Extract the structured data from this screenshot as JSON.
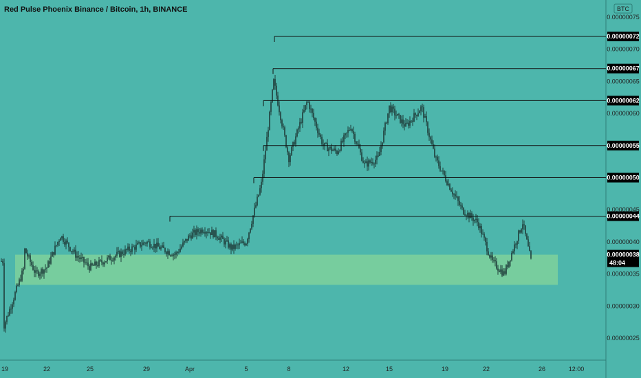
{
  "title": "Red Pulse Phoenix Binance / Bitcoin, 1h, BINANCE",
  "currency_badge": "BTC",
  "countdown": "48:04",
  "colors": {
    "background": "#4db6ac",
    "candle": "#1f3d3a",
    "zone": "#7fd19b",
    "line": "#111111",
    "tag_bg": "#000000",
    "tag_text": "#ffffff"
  },
  "chart_data": {
    "type": "candlestick",
    "symbol": "Red Pulse Phoenix Binance / Bitcoin",
    "interval": "1h",
    "exchange": "BINANCE",
    "x_ticks": [
      "19",
      "22",
      "25",
      "29",
      "Apr",
      "5",
      "8",
      "12",
      "15",
      "19",
      "22",
      "26",
      "12:00"
    ],
    "y_range": [
      2.2e-07,
      7.71e-07
    ],
    "y_ticks": [
      "0.00000025",
      "0.00000030",
      "0.00000035",
      "0.00000040",
      "0.00000045",
      "0.00000050",
      "0.00000055",
      "0.00000060",
      "0.00000065",
      "0.00000070",
      "0.00000075"
    ],
    "horizontal_levels": [
      "0.00000072",
      "0.00000067",
      "0.00000062",
      "0.00000055",
      "0.00000050",
      "0.00000044"
    ],
    "current_price": "0.00000038",
    "support_zone": [
      3.33e-07,
      3.8e-07
    ],
    "close_path": [
      {
        "date": "Mar 19",
        "close": 2.7e-07
      },
      {
        "date": "Mar 20",
        "close": 3.6e-07
      },
      {
        "date": "Mar 20",
        "close": 3.9e-07
      },
      {
        "date": "Mar 21",
        "close": 3.5e-07
      },
      {
        "date": "Mar 22",
        "close": 3.6e-07
      },
      {
        "date": "Mar 23",
        "close": 4.1e-07
      },
      {
        "date": "Mar 24",
        "close": 3.8e-07
      },
      {
        "date": "Mar 25",
        "close": 3.6e-07
      },
      {
        "date": "Mar 26",
        "close": 3.7e-07
      },
      {
        "date": "Mar 28",
        "close": 3.9e-07
      },
      {
        "date": "Mar 29",
        "close": 4e-07
      },
      {
        "date": "Mar 30",
        "close": 3.9e-07
      },
      {
        "date": "Mar 31",
        "close": 3.8e-07
      },
      {
        "date": "Apr 1",
        "close": 4.1e-07
      },
      {
        "date": "Apr 2",
        "close": 4.2e-07
      },
      {
        "date": "Apr 3",
        "close": 4.1e-07
      },
      {
        "date": "Apr 4",
        "close": 3.9e-07
      },
      {
        "date": "Apr 5",
        "close": 4e-07
      },
      {
        "date": "Apr 6",
        "close": 4.9e-07
      },
      {
        "date": "Apr 7",
        "close": 6.5e-07
      },
      {
        "date": "Apr 8",
        "close": 5.3e-07
      },
      {
        "date": "Apr 9",
        "close": 6.2e-07
      },
      {
        "date": "Apr 10",
        "close": 5.5e-07
      },
      {
        "date": "Apr 11",
        "close": 5.4e-07
      },
      {
        "date": "Apr 12",
        "close": 5.8e-07
      },
      {
        "date": "Apr 13",
        "close": 5.2e-07
      },
      {
        "date": "Apr 14",
        "close": 5.3e-07
      },
      {
        "date": "Apr 15",
        "close": 6.1e-07
      },
      {
        "date": "Apr 16",
        "close": 5.8e-07
      },
      {
        "date": "Apr 17",
        "close": 6.1e-07
      },
      {
        "date": "Apr 18",
        "close": 5.3e-07
      },
      {
        "date": "Apr 19",
        "close": 4.9e-07
      },
      {
        "date": "Apr 20",
        "close": 4.5e-07
      },
      {
        "date": "Apr 21",
        "close": 4.3e-07
      },
      {
        "date": "Apr 22",
        "close": 3.7e-07
      },
      {
        "date": "Apr 23",
        "close": 3.5e-07
      },
      {
        "date": "Apr 24",
        "close": 4.3e-07
      },
      {
        "date": "Apr 25",
        "close": 3.7e-07
      }
    ]
  }
}
